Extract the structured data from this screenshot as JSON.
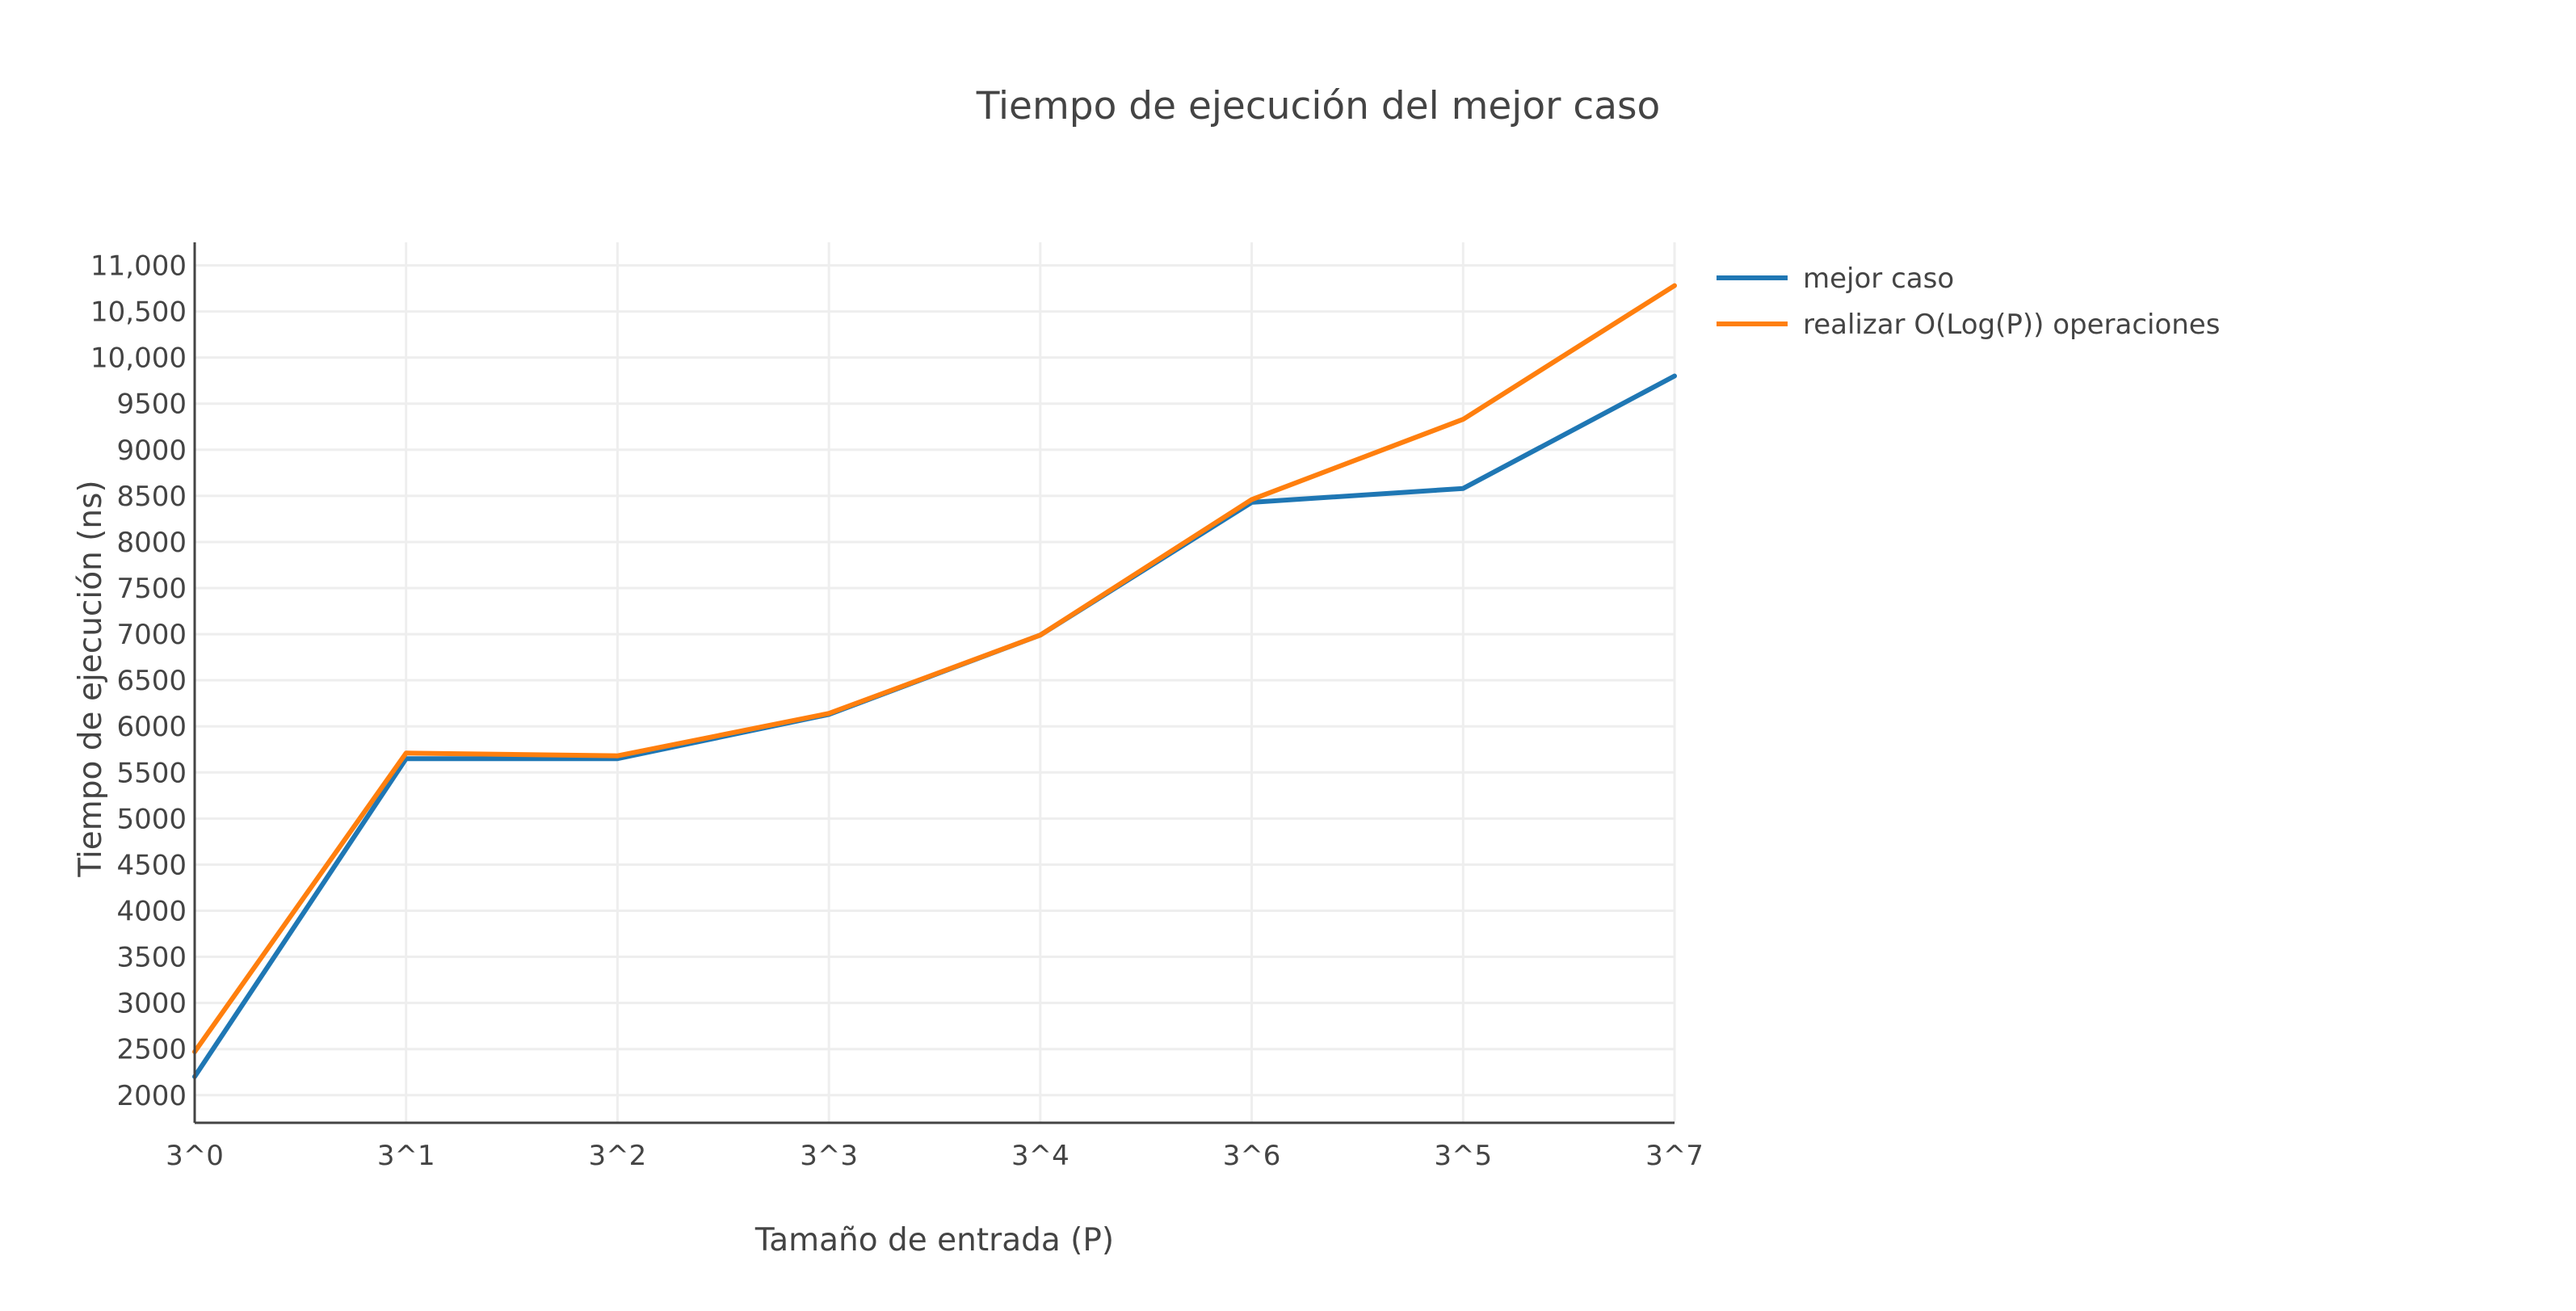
{
  "chart_data": {
    "type": "line",
    "title": "Tiempo de ejecución del mejor caso",
    "xlabel": "Tamaño de entrada (P)",
    "ylabel": "Tiempo de ejecución (ns)",
    "categories": [
      "3^0",
      "3^1",
      "3^2",
      "3^3",
      "3^4",
      "3^6",
      "3^5",
      "3^7"
    ],
    "series": [
      {
        "name": "mejor caso",
        "color": "#1f77b4",
        "values": [
          2200,
          5650,
          5650,
          6130,
          6990,
          8430,
          8580,
          9800
        ]
      },
      {
        "name": "realizar O(Log(P)) operaciones",
        "color": "#ff7f0e",
        "values": [
          2470,
          5710,
          5680,
          6140,
          6990,
          8460,
          9330,
          10780
        ]
      }
    ],
    "yticks": [
      {
        "value": 2000,
        "label": "2000"
      },
      {
        "value": 2500,
        "label": "2500"
      },
      {
        "value": 3000,
        "label": "3000"
      },
      {
        "value": 3500,
        "label": "3500"
      },
      {
        "value": 4000,
        "label": "4000"
      },
      {
        "value": 4500,
        "label": "4500"
      },
      {
        "value": 5000,
        "label": "5000"
      },
      {
        "value": 5500,
        "label": "5500"
      },
      {
        "value": 6000,
        "label": "6000"
      },
      {
        "value": 6500,
        "label": "6500"
      },
      {
        "value": 7000,
        "label": "7000"
      },
      {
        "value": 7500,
        "label": "7500"
      },
      {
        "value": 8000,
        "label": "8000"
      },
      {
        "value": 8500,
        "label": "8500"
      },
      {
        "value": 9000,
        "label": "9000"
      },
      {
        "value": 9500,
        "label": "9500"
      },
      {
        "value": 10000,
        "label": "10,000"
      },
      {
        "value": 10500,
        "label": "10,500"
      },
      {
        "value": 11000,
        "label": "11,000"
      }
    ],
    "ylim": [
      1700,
      11250
    ],
    "grid": true,
    "legend_position": "top-right"
  }
}
